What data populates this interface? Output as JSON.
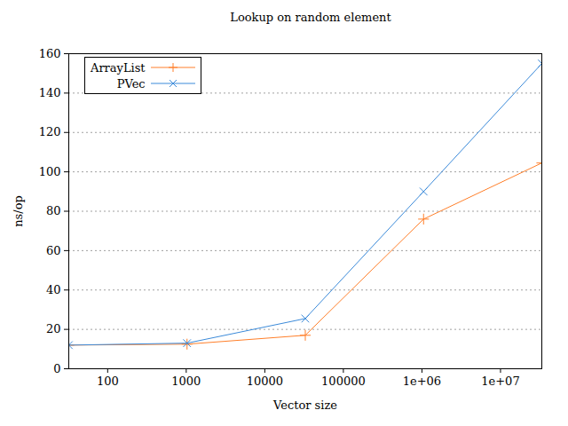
{
  "chart_data": {
    "type": "line",
    "title": "Lookup on random element",
    "x_label": "Vector size",
    "y_label": "ns/op",
    "x": [
      32,
      1024,
      32768,
      1048576,
      33554432
    ],
    "series": [
      {
        "name": "ArrayList",
        "color": "#ff7f2a",
        "marker": "plus",
        "values": [
          12,
          12.5,
          17,
          76,
          104.5
        ]
      },
      {
        "name": "PVec",
        "color": "#3b8ad9",
        "marker": "cross",
        "values": [
          12,
          13,
          25.5,
          90,
          155
        ]
      }
    ],
    "log": "x",
    "xlim": [
      32,
      33554432
    ],
    "xticks": [
      100,
      1000,
      10000,
      100000,
      {
        "value": 1000000,
        "label": "1e+06"
      },
      {
        "value": 10000000,
        "label": "1e+07"
      }
    ],
    "ylim": [
      0,
      160
    ],
    "yticks": [
      0,
      20,
      40,
      60,
      80,
      100,
      120,
      140,
      160
    ],
    "grid": true,
    "legend": "upper left"
  }
}
